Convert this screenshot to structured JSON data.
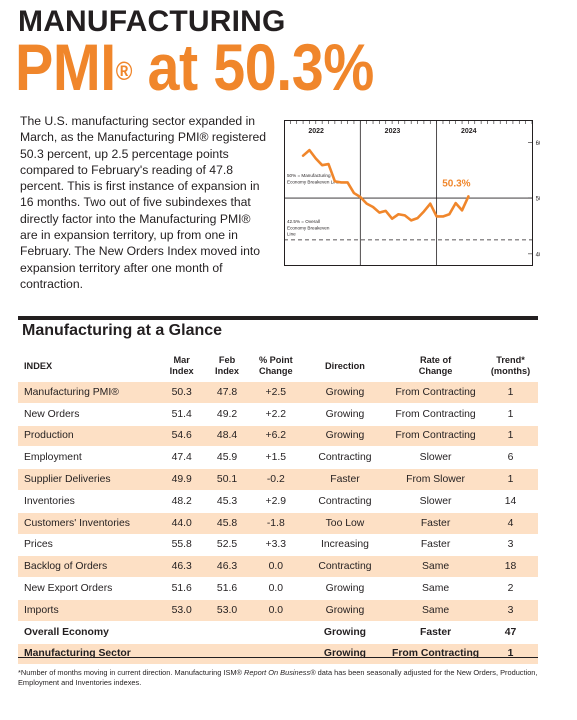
{
  "header": {
    "kicker": "MANUFACTURING",
    "headline_main": "PMI",
    "headline_reg": "®",
    "headline_rest": " at 50.3%"
  },
  "intro_text": "The U.S. manufacturing sector expanded in March, as the Manufacturing PMI® registered 50.3 percent, up 2.5 percentage points compared to February's reading of 47.8 percent. This is first instance of expansion in 16 months. Two out of five subindexes that directly factor into the Manufacturing PMI® are in expansion territory, up from one in February. The New Orders Index moved into expansion territory after one month of contraction.",
  "chart_data": {
    "type": "line",
    "x_labels": [
      "2022",
      "2023",
      "2024"
    ],
    "y_ticks": [
      40,
      50,
      60
    ],
    "ylim": [
      38,
      64
    ],
    "callout": "50.3%",
    "annotations": [
      "50% = Manufacturing Economy Breakeven Line",
      "42.5% = Overall Economy Breakeven Line"
    ],
    "breakeven_manufacturing": 50,
    "breakeven_overall": 42.5,
    "series": [
      {
        "values": [
          57.6,
          58.6,
          57.1,
          55.9,
          56.1,
          53.0,
          52.8,
          52.8,
          50.9,
          50.2,
          49.0,
          48.4,
          47.4,
          47.7,
          46.3,
          47.1,
          46.9,
          46.0,
          46.4,
          47.6,
          49.0,
          46.7,
          46.7,
          47.1,
          49.1,
          47.8,
          50.3
        ]
      }
    ],
    "colors": {
      "line": "#f0862b",
      "frame": "#231f20"
    }
  },
  "section": {
    "title": "Manufacturing at a Glance"
  },
  "table": {
    "headers": {
      "index": "INDEX",
      "mar_line1": "Mar",
      "mar_line2": "Index",
      "feb_line1": "Feb",
      "feb_line2": "Index",
      "change_line1": "% Point",
      "change_line2": "Change",
      "direction": "Direction",
      "rate_line1": "Rate of",
      "rate_line2": "Change",
      "trend_line1": "Trend*",
      "trend_line2": "(months)"
    },
    "rows": [
      {
        "index": "Manufacturing PMI®",
        "mar": "50.3",
        "feb": "47.8",
        "change": "+2.5",
        "direction": "Growing",
        "rate": "From Contracting",
        "trend": "1"
      },
      {
        "index": "New Orders",
        "mar": "51.4",
        "feb": "49.2",
        "change": "+2.2",
        "direction": "Growing",
        "rate": "From Contracting",
        "trend": "1"
      },
      {
        "index": "Production",
        "mar": "54.6",
        "feb": "48.4",
        "change": "+6.2",
        "direction": "Growing",
        "rate": "From Contracting",
        "trend": "1"
      },
      {
        "index": "Employment",
        "mar": "47.4",
        "feb": "45.9",
        "change": "+1.5",
        "direction": "Contracting",
        "rate": "Slower",
        "trend": "6"
      },
      {
        "index": "Supplier Deliveries",
        "mar": "49.9",
        "feb": "50.1",
        "change": "-0.2",
        "direction": "Faster",
        "rate": "From Slower",
        "trend": "1"
      },
      {
        "index": "Inventories",
        "mar": "48.2",
        "feb": "45.3",
        "change": "+2.9",
        "direction": "Contracting",
        "rate": "Slower",
        "trend": "14"
      },
      {
        "index": "Customers' Inventories",
        "mar": "44.0",
        "feb": "45.8",
        "change": "-1.8",
        "direction": "Too Low",
        "rate": "Faster",
        "trend": "4"
      },
      {
        "index": "Prices",
        "mar": "55.8",
        "feb": "52.5",
        "change": "+3.3",
        "direction": "Increasing",
        "rate": "Faster",
        "trend": "3"
      },
      {
        "index": "Backlog of Orders",
        "mar": "46.3",
        "feb": "46.3",
        "change": "0.0",
        "direction": "Contracting",
        "rate": "Same",
        "trend": "18"
      },
      {
        "index": "New Export Orders",
        "mar": "51.6",
        "feb": "51.6",
        "change": "0.0",
        "direction": "Growing",
        "rate": "Same",
        "trend": "2"
      },
      {
        "index": "Imports",
        "mar": "53.0",
        "feb": "53.0",
        "change": "0.0",
        "direction": "Growing",
        "rate": "Same",
        "trend": "3"
      }
    ],
    "summary_rows": [
      {
        "index": "Overall Economy",
        "mar": "",
        "feb": "",
        "change": "",
        "direction": "Growing",
        "rate": "Faster",
        "trend": "47"
      },
      {
        "index": "Manufacturing Sector",
        "mar": "",
        "feb": "",
        "change": "",
        "direction": "Growing",
        "rate": "From Contracting",
        "trend": "1"
      }
    ],
    "shade_color": "#fde0c5"
  },
  "footnote": {
    "part1": "*Number of months moving in current direction. Manufacturing ISM® ",
    "italic": "Report On Business®",
    "part2": " data has been seasonally adjusted for the New Orders, Production, Employment and Inventories indexes."
  }
}
